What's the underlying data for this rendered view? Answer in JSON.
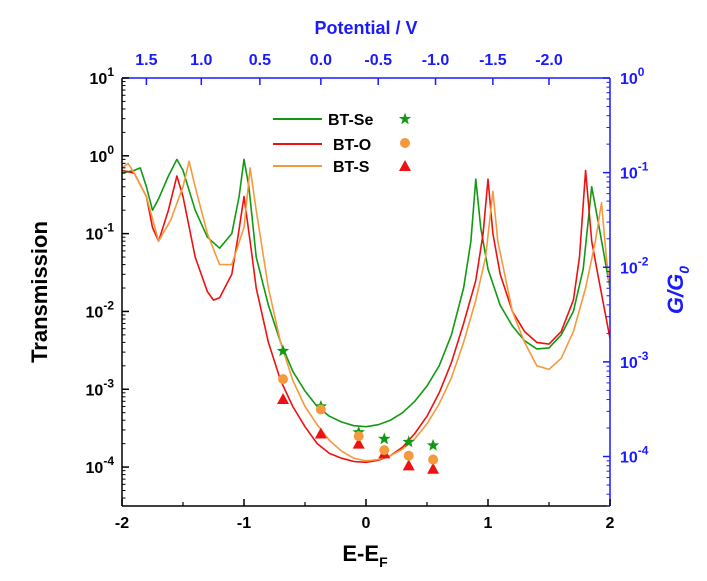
{
  "chart_data": {
    "type": "line",
    "xlabel_main": "E-E",
    "xlabel_sub": "F",
    "ylabel": "Transmission",
    "top_xlabel": "Potential / V",
    "right_ylabel_main": "G/G",
    "right_ylabel_sub": "0",
    "xlim": [
      -2,
      2
    ],
    "ylim": [
      3.16e-05,
      10
    ],
    "y_scale": "log",
    "right_ylim": [
      3e-05,
      1
    ],
    "x_ticks": [
      "-2",
      "-1",
      "0",
      "1",
      "2"
    ],
    "y_ticks": [
      {
        "base": "10",
        "exp": "-4",
        "value": 0.0001
      },
      {
        "base": "10",
        "exp": "-3",
        "value": 0.001
      },
      {
        "base": "10",
        "exp": "-2",
        "value": 0.01
      },
      {
        "base": "10",
        "exp": "-1",
        "value": 0.1
      },
      {
        "base": "10",
        "exp": "0",
        "value": 1
      },
      {
        "base": "10",
        "exp": "1",
        "value": 10
      }
    ],
    "right_ticks": [
      {
        "base": "10",
        "exp": "-4",
        "value": 0.0001
      },
      {
        "base": "10",
        "exp": "-3",
        "value": 0.001
      },
      {
        "base": "10",
        "exp": "-2",
        "value": 0.01
      },
      {
        "base": "10",
        "exp": "-1",
        "value": 0.1
      },
      {
        "base": "10",
        "exp": "0",
        "value": 1
      }
    ],
    "top_ticks": [
      {
        "label": "1.5",
        "x": -1.8
      },
      {
        "label": "1.0",
        "x": -1.35
      },
      {
        "label": "0.5",
        "x": -0.87
      },
      {
        "label": "0.0",
        "x": -0.37
      },
      {
        "label": "-0.5",
        "x": 0.1
      },
      {
        "label": "-1.0",
        "x": 0.57
      },
      {
        "label": "-1.5",
        "x": 1.04
      },
      {
        "label": "-2.0",
        "x": 1.5
      }
    ],
    "legend_position": "top-center",
    "series": [
      {
        "name": "BT-Se",
        "color": "#119a11",
        "marker": "star",
        "points": [
          [
            -2,
            0.6
          ],
          [
            -1.9,
            0.65
          ],
          [
            -1.85,
            0.7
          ],
          [
            -1.8,
            0.4
          ],
          [
            -1.75,
            0.2
          ],
          [
            -1.7,
            0.28
          ],
          [
            -1.62,
            0.55
          ],
          [
            -1.55,
            0.9
          ],
          [
            -1.5,
            0.65
          ],
          [
            -1.4,
            0.2
          ],
          [
            -1.3,
            0.09
          ],
          [
            -1.2,
            0.065
          ],
          [
            -1.1,
            0.1
          ],
          [
            -1.04,
            0.3
          ],
          [
            -1.0,
            0.9
          ],
          [
            -0.96,
            0.4
          ],
          [
            -0.9,
            0.05
          ],
          [
            -0.8,
            0.012
          ],
          [
            -0.7,
            0.004
          ],
          [
            -0.6,
            0.0017
          ],
          [
            -0.5,
            0.00095
          ],
          [
            -0.4,
            0.0006
          ],
          [
            -0.3,
            0.00045
          ],
          [
            -0.2,
            0.00038
          ],
          [
            -0.1,
            0.00034
          ],
          [
            0,
            0.00033
          ],
          [
            0.1,
            0.00035
          ],
          [
            0.2,
            0.0004
          ],
          [
            0.3,
            0.0005
          ],
          [
            0.4,
            0.0007
          ],
          [
            0.5,
            0.0011
          ],
          [
            0.6,
            0.002
          ],
          [
            0.7,
            0.005
          ],
          [
            0.8,
            0.02
          ],
          [
            0.86,
            0.08
          ],
          [
            0.9,
            0.5
          ],
          [
            0.94,
            0.12
          ],
          [
            1.0,
            0.035
          ],
          [
            1.1,
            0.012
          ],
          [
            1.2,
            0.0065
          ],
          [
            1.3,
            0.0042
          ],
          [
            1.4,
            0.0033
          ],
          [
            1.5,
            0.0034
          ],
          [
            1.6,
            0.005
          ],
          [
            1.7,
            0.01
          ],
          [
            1.78,
            0.035
          ],
          [
            1.85,
            0.4
          ],
          [
            1.9,
            0.15
          ],
          [
            2.0,
            0.02
          ]
        ],
        "markers": [
          [
            -0.68,
            0.0031
          ],
          [
            -0.37,
            0.0006
          ],
          [
            -0.06,
            0.00028
          ],
          [
            0.15,
            0.00023
          ],
          [
            0.35,
            0.00021
          ],
          [
            0.55,
            0.00019
          ]
        ]
      },
      {
        "name": "BT-O",
        "color": "#ee1111",
        "marker": "triangle",
        "points": [
          [
            -2,
            0.65
          ],
          [
            -1.9,
            0.6
          ],
          [
            -1.8,
            0.3
          ],
          [
            -1.75,
            0.12
          ],
          [
            -1.7,
            0.08
          ],
          [
            -1.62,
            0.2
          ],
          [
            -1.55,
            0.55
          ],
          [
            -1.5,
            0.3
          ],
          [
            -1.4,
            0.05
          ],
          [
            -1.3,
            0.018
          ],
          [
            -1.25,
            0.014
          ],
          [
            -1.2,
            0.015
          ],
          [
            -1.1,
            0.03
          ],
          [
            -1.05,
            0.09
          ],
          [
            -1.0,
            0.3
          ],
          [
            -0.95,
            0.08
          ],
          [
            -0.9,
            0.02
          ],
          [
            -0.8,
            0.004
          ],
          [
            -0.7,
            0.0013
          ],
          [
            -0.6,
            0.0006
          ],
          [
            -0.5,
            0.00033
          ],
          [
            -0.4,
            0.0002
          ],
          [
            -0.3,
            0.00015
          ],
          [
            -0.2,
            0.00013
          ],
          [
            -0.1,
            0.000118
          ],
          [
            0,
            0.000115
          ],
          [
            0.1,
            0.000122
          ],
          [
            0.2,
            0.00014
          ],
          [
            0.3,
            0.00018
          ],
          [
            0.4,
            0.00027
          ],
          [
            0.5,
            0.00045
          ],
          [
            0.6,
            0.0009
          ],
          [
            0.7,
            0.0022
          ],
          [
            0.8,
            0.007
          ],
          [
            0.9,
            0.025
          ],
          [
            0.96,
            0.1
          ],
          [
            1.0,
            0.5
          ],
          [
            1.04,
            0.1
          ],
          [
            1.1,
            0.03
          ],
          [
            1.2,
            0.01
          ],
          [
            1.3,
            0.0055
          ],
          [
            1.4,
            0.004
          ],
          [
            1.5,
            0.0038
          ],
          [
            1.6,
            0.0055
          ],
          [
            1.7,
            0.014
          ],
          [
            1.75,
            0.05
          ],
          [
            1.8,
            0.65
          ],
          [
            1.85,
            0.08
          ],
          [
            1.9,
            0.03
          ],
          [
            2.0,
            0.0045
          ]
        ],
        "markers": [
          [
            -0.68,
            0.00075
          ],
          [
            -0.37,
            0.00027
          ],
          [
            -0.06,
            0.0002
          ],
          [
            0.15,
            0.00015
          ],
          [
            0.35,
            0.000105
          ],
          [
            0.55,
            9.5e-05
          ]
        ]
      },
      {
        "name": "BT-S",
        "color": "#f59a3c",
        "marker": "circle",
        "points": [
          [
            -2,
            0.7
          ],
          [
            -1.95,
            0.8
          ],
          [
            -1.9,
            0.6
          ],
          [
            -1.8,
            0.3
          ],
          [
            -1.7,
            0.08
          ],
          [
            -1.6,
            0.15
          ],
          [
            -1.5,
            0.4
          ],
          [
            -1.45,
            0.85
          ],
          [
            -1.4,
            0.4
          ],
          [
            -1.3,
            0.1
          ],
          [
            -1.2,
            0.04
          ],
          [
            -1.1,
            0.04
          ],
          [
            -1.0,
            0.12
          ],
          [
            -0.95,
            0.7
          ],
          [
            -0.9,
            0.2
          ],
          [
            -0.8,
            0.02
          ],
          [
            -0.7,
            0.004
          ],
          [
            -0.6,
            0.0013
          ],
          [
            -0.5,
            0.0006
          ],
          [
            -0.4,
            0.00035
          ],
          [
            -0.3,
            0.00022
          ],
          [
            -0.2,
            0.00016
          ],
          [
            -0.1,
            0.00013
          ],
          [
            0,
            0.00012
          ],
          [
            0.1,
            0.000125
          ],
          [
            0.2,
            0.00014
          ],
          [
            0.3,
            0.00017
          ],
          [
            0.4,
            0.00023
          ],
          [
            0.5,
            0.00036
          ],
          [
            0.6,
            0.00065
          ],
          [
            0.7,
            0.0014
          ],
          [
            0.8,
            0.004
          ],
          [
            0.9,
            0.014
          ],
          [
            0.98,
            0.05
          ],
          [
            1.04,
            0.35
          ],
          [
            1.08,
            0.08
          ],
          [
            1.2,
            0.01
          ],
          [
            1.3,
            0.004
          ],
          [
            1.4,
            0.002
          ],
          [
            1.5,
            0.0018
          ],
          [
            1.6,
            0.0025
          ],
          [
            1.7,
            0.0055
          ],
          [
            1.8,
            0.02
          ],
          [
            1.88,
            0.08
          ],
          [
            1.93,
            0.25
          ],
          [
            1.97,
            0.05
          ],
          [
            2.0,
            0.02
          ]
        ],
        "markers": [
          [
            -0.68,
            0.00135
          ],
          [
            -0.37,
            0.00055
          ],
          [
            -0.06,
            0.00025
          ],
          [
            0.15,
            0.000165
          ],
          [
            0.35,
            0.00014
          ],
          [
            0.55,
            0.000125
          ]
        ]
      }
    ]
  }
}
